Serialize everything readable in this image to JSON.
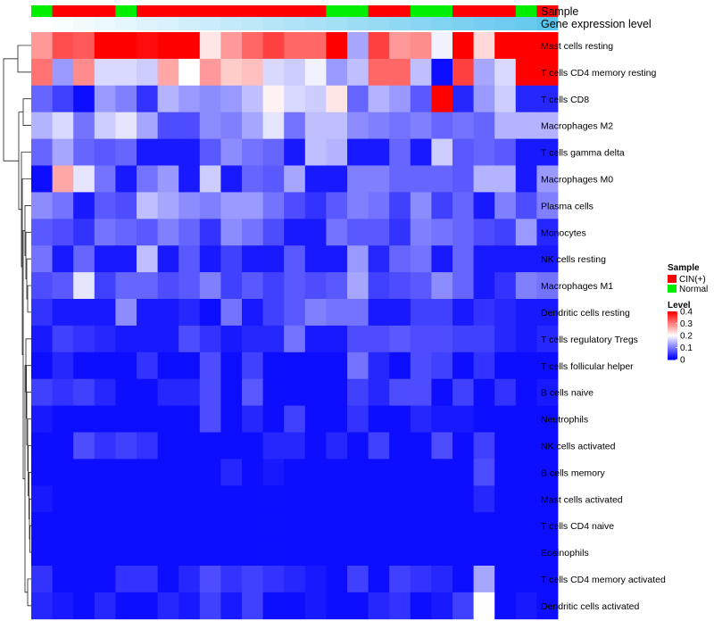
{
  "chart_data": {
    "type": "heatmap",
    "annotation_tracks": [
      {
        "name": "Sample",
        "label": "Sample"
      },
      {
        "name": "Gene expression level",
        "label": "Gene expression level"
      }
    ],
    "sample_groups": [
      "Normal",
      "CIN(+)",
      "CIN(+)",
      "CIN(+)",
      "Normal",
      "CIN(+)",
      "CIN(+)",
      "CIN(+)",
      "CIN(+)",
      "CIN(+)",
      "CIN(+)",
      "CIN(+)",
      "CIN(+)",
      "CIN(+)",
      "Normal",
      "Normal",
      "CIN(+)",
      "CIN(+)",
      "Normal",
      "Normal",
      "CIN(+)",
      "CIN(+)",
      "CIN(+)",
      "Normal",
      "CIN(+)"
    ],
    "expression_level": [
      0.0,
      0.04,
      0.08,
      0.12,
      0.16,
      0.2,
      0.24,
      0.28,
      0.32,
      0.36,
      0.4,
      0.44,
      0.48,
      0.52,
      0.56,
      0.6,
      0.64,
      0.68,
      0.72,
      0.76,
      0.8,
      0.84,
      0.88,
      0.92,
      1.0
    ],
    "rows": [
      "Mast cells resting",
      "T cells CD4 memory resting",
      "T cells CD8",
      "Macrophages M2",
      "T cells gamma delta",
      "Macrophages M0",
      "Plasma cells",
      "Monocytes",
      "NK cells resting",
      "Macrophages M1",
      "Dendritic cells resting",
      "T cells regulatory  Tregs",
      "T cells follicular helper",
      "B cells naive",
      "Neutrophils",
      "NK cells activated",
      "B cells memory",
      "Mast cells activated",
      "T cells CD4 naive",
      "Eosinophils",
      "T cells CD4 memory activated",
      "Dendritic cells activated"
    ],
    "values": [
      [
        0.28,
        0.34,
        0.33,
        0.4,
        0.4,
        0.39,
        0.4,
        0.4,
        0.22,
        0.28,
        0.32,
        0.35,
        0.32,
        0.32,
        0.4,
        0.13,
        0.35,
        0.28,
        0.29,
        0.19,
        0.4,
        0.23,
        0.4,
        0.4,
        0.4
      ],
      [
        0.31,
        0.12,
        0.29,
        0.17,
        0.17,
        0.16,
        0.27,
        0.2,
        0.28,
        0.24,
        0.25,
        0.17,
        0.16,
        0.19,
        0.12,
        0.15,
        0.32,
        0.32,
        0.15,
        0.01,
        0.35,
        0.13,
        0.17,
        0.4,
        0.4
      ],
      [
        0.08,
        0.05,
        0.01,
        0.12,
        0.1,
        0.04,
        0.14,
        0.12,
        0.11,
        0.12,
        0.15,
        0.21,
        0.17,
        0.16,
        0.22,
        0.08,
        0.14,
        0.12,
        0.07,
        0.4,
        0.03,
        0.12,
        0.16,
        0.03,
        0.03
      ],
      [
        0.14,
        0.17,
        0.09,
        0.16,
        0.18,
        0.13,
        0.06,
        0.06,
        0.11,
        0.1,
        0.13,
        0.18,
        0.09,
        0.15,
        0.15,
        0.11,
        0.1,
        0.09,
        0.1,
        0.08,
        0.09,
        0.08,
        0.14,
        0.14,
        0.14
      ],
      [
        0.08,
        0.13,
        0.08,
        0.07,
        0.08,
        0.02,
        0.02,
        0.02,
        0.07,
        0.11,
        0.09,
        0.08,
        0.02,
        0.15,
        0.14,
        0.02,
        0.02,
        0.08,
        0.02,
        0.16,
        0.07,
        0.08,
        0.07,
        0.02,
        0.02
      ],
      [
        0.01,
        0.27,
        0.18,
        0.09,
        0.02,
        0.09,
        0.12,
        0.02,
        0.16,
        0.02,
        0.08,
        0.07,
        0.13,
        0.02,
        0.02,
        0.1,
        0.1,
        0.08,
        0.08,
        0.08,
        0.07,
        0.14,
        0.14,
        0.02,
        0.12
      ],
      [
        0.11,
        0.09,
        0.02,
        0.07,
        0.06,
        0.15,
        0.13,
        0.11,
        0.1,
        0.12,
        0.12,
        0.09,
        0.06,
        0.04,
        0.07,
        0.1,
        0.09,
        0.05,
        0.11,
        0.05,
        0.08,
        0.02,
        0.1,
        0.06,
        0.1
      ],
      [
        0.07,
        0.06,
        0.04,
        0.09,
        0.08,
        0.07,
        0.1,
        0.08,
        0.04,
        0.11,
        0.09,
        0.06,
        0.02,
        0.02,
        0.09,
        0.07,
        0.07,
        0.04,
        0.1,
        0.09,
        0.08,
        0.06,
        0.05,
        0.12,
        0.03
      ],
      [
        0.09,
        0.02,
        0.08,
        0.02,
        0.02,
        0.15,
        0.02,
        0.07,
        0.02,
        0.05,
        0.02,
        0.02,
        0.07,
        0.02,
        0.02,
        0.12,
        0.03,
        0.08,
        0.09,
        0.02,
        0.08,
        0.02,
        0.02,
        0.02,
        0.02
      ],
      [
        0.06,
        0.07,
        0.18,
        0.05,
        0.08,
        0.08,
        0.06,
        0.07,
        0.1,
        0.05,
        0.07,
        0.05,
        0.07,
        0.06,
        0.07,
        0.13,
        0.05,
        0.06,
        0.07,
        0.11,
        0.08,
        0.02,
        0.04,
        0.1,
        0.09
      ],
      [
        0.04,
        0.02,
        0.02,
        0.02,
        0.11,
        0.02,
        0.02,
        0.03,
        0.01,
        0.09,
        0.02,
        0.05,
        0.07,
        0.1,
        0.09,
        0.09,
        0.02,
        0.02,
        0.05,
        0.05,
        0.02,
        0.04,
        0.03,
        0.02,
        0.02
      ],
      [
        0.02,
        0.05,
        0.04,
        0.03,
        0.02,
        0.02,
        0.02,
        0.06,
        0.04,
        0.02,
        0.03,
        0.03,
        0.09,
        0.02,
        0.02,
        0.06,
        0.06,
        0.07,
        0.06,
        0.06,
        0.05,
        0.05,
        0.03,
        0.02,
        0.03
      ],
      [
        0.01,
        0.03,
        0.01,
        0.01,
        0.01,
        0.04,
        0.01,
        0.01,
        0.06,
        0.01,
        0.05,
        0.01,
        0.01,
        0.01,
        0.01,
        0.09,
        0.03,
        0.01,
        0.06,
        0.05,
        0.01,
        0.04,
        0.01,
        0.01,
        0.01
      ],
      [
        0.05,
        0.04,
        0.05,
        0.03,
        0.01,
        0.01,
        0.03,
        0.03,
        0.06,
        0.01,
        0.07,
        0.01,
        0.01,
        0.01,
        0.01,
        0.05,
        0.03,
        0.06,
        0.06,
        0.01,
        0.05,
        0.01,
        0.04,
        0.01,
        0.02
      ],
      [
        0.02,
        0.01,
        0.01,
        0.01,
        0.01,
        0.01,
        0.01,
        0.01,
        0.06,
        0.01,
        0.03,
        0.01,
        0.05,
        0.01,
        0.01,
        0.04,
        0.01,
        0.01,
        0.03,
        0.02,
        0.02,
        0.01,
        0.01,
        0.01,
        0.01
      ],
      [
        0.01,
        0.01,
        0.06,
        0.04,
        0.05,
        0.04,
        0.01,
        0.01,
        0.01,
        0.01,
        0.01,
        0.03,
        0.03,
        0.01,
        0.03,
        0.01,
        0.05,
        0.01,
        0.01,
        0.06,
        0.01,
        0.05,
        0.01,
        0.01,
        0.01
      ],
      [
        0.01,
        0.01,
        0.01,
        0.01,
        0.01,
        0.01,
        0.01,
        0.01,
        0.01,
        0.03,
        0.01,
        0.02,
        0.01,
        0.01,
        0.01,
        0.01,
        0.01,
        0.01,
        0.01,
        0.01,
        0.01,
        0.06,
        0.01,
        0.01,
        0.01
      ],
      [
        0.02,
        0.01,
        0.01,
        0.01,
        0.01,
        0.01,
        0.01,
        0.01,
        0.01,
        0.01,
        0.01,
        0.01,
        0.01,
        0.01,
        0.01,
        0.01,
        0.01,
        0.01,
        0.01,
        0.01,
        0.01,
        0.03,
        0.01,
        0.01,
        0.01
      ],
      [
        0.01,
        0.01,
        0.01,
        0.01,
        0.01,
        0.01,
        0.01,
        0.01,
        0.01,
        0.01,
        0.01,
        0.01,
        0.01,
        0.01,
        0.01,
        0.01,
        0.01,
        0.01,
        0.01,
        0.01,
        0.01,
        0.01,
        0.01,
        0.01,
        0.01
      ],
      [
        0.01,
        0.01,
        0.01,
        0.01,
        0.01,
        0.01,
        0.01,
        0.01,
        0.01,
        0.01,
        0.01,
        0.01,
        0.01,
        0.01,
        0.01,
        0.01,
        0.01,
        0.01,
        0.01,
        0.01,
        0.01,
        0.01,
        0.01,
        0.01,
        0.01
      ],
      [
        0.04,
        0.01,
        0.01,
        0.01,
        0.04,
        0.04,
        0.01,
        0.03,
        0.06,
        0.04,
        0.05,
        0.04,
        0.03,
        0.02,
        0.01,
        0.05,
        0.01,
        0.05,
        0.04,
        0.03,
        0.01,
        0.13,
        0.01,
        0.01,
        0.01
      ],
      [
        0.03,
        0.02,
        0.01,
        0.03,
        0.01,
        0.01,
        0.03,
        0.02,
        0.05,
        0.02,
        0.05,
        0.01,
        0.01,
        0.02,
        0.01,
        0.01,
        0.03,
        0.04,
        0.01,
        0.02,
        0.05,
        0.2,
        0.01,
        0.02,
        0.01
      ]
    ],
    "legend": {
      "sample": {
        "title": "Sample",
        "entries": [
          {
            "label": "CIN(+)",
            "color": "#ff0000"
          },
          {
            "label": "Normal",
            "color": "#00ee00"
          }
        ]
      },
      "level": {
        "title": "Level",
        "min": 0,
        "max": 0.4,
        "ticks": [
          {
            "value": 0.4,
            "label": "0.4"
          },
          {
            "value": 0.3,
            "label": "0.3"
          },
          {
            "value": 0.2,
            "label": "0.2"
          },
          {
            "value": 0.1,
            "label": "0.1"
          },
          {
            "value": 0,
            "label": "0"
          }
        ]
      }
    },
    "colors": {
      "low": "#0000ff",
      "mid": "#ffffff",
      "high": "#ff0000",
      "cin": "#ff0000",
      "normal": "#00ee00",
      "expr_low": "#ffffff",
      "expr_high": "#5bc5ee"
    }
  }
}
